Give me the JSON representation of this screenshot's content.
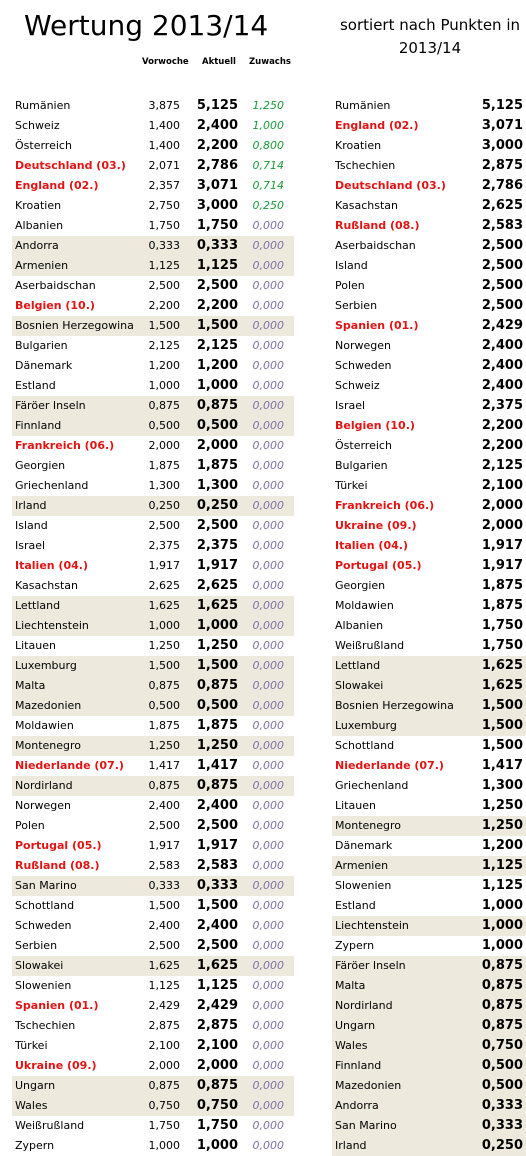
{
  "title": "Wertung 2013/14",
  "subtitle": "sortiert nach Punkten in 2013/14",
  "headers": {
    "vorwoche": "Vorwoche",
    "aktuell": "Aktuell",
    "zuwachs": "Zuwachs"
  },
  "colors": {
    "highlight_red": "#e31414",
    "gain_green": "#1a9a3a",
    "zero_purple": "#7f6fa8",
    "row_shade": "#ede9dd"
  },
  "left_rows": [
    {
      "name": "Rumänien",
      "vorwoche": "3,875",
      "aktuell": "5,125",
      "zuwachs": "1,250",
      "red": false,
      "shaded": false
    },
    {
      "name": "Schweiz",
      "vorwoche": "1,400",
      "aktuell": "2,400",
      "zuwachs": "1,000",
      "red": false,
      "shaded": false
    },
    {
      "name": "Österreich",
      "vorwoche": "1,400",
      "aktuell": "2,200",
      "zuwachs": "0,800",
      "red": false,
      "shaded": false
    },
    {
      "name": "Deutschland (03.)",
      "vorwoche": "2,071",
      "aktuell": "2,786",
      "zuwachs": "0,714",
      "red": true,
      "shaded": false
    },
    {
      "name": "England (02.)",
      "vorwoche": "2,357",
      "aktuell": "3,071",
      "zuwachs": "0,714",
      "red": true,
      "shaded": false
    },
    {
      "name": "Kroatien",
      "vorwoche": "2,750",
      "aktuell": "3,000",
      "zuwachs": "0,250",
      "red": false,
      "shaded": false
    },
    {
      "name": "Albanien",
      "vorwoche": "1,750",
      "aktuell": "1,750",
      "zuwachs": "0,000",
      "red": false,
      "shaded": false
    },
    {
      "name": "Andorra",
      "vorwoche": "0,333",
      "aktuell": "0,333",
      "zuwachs": "0,000",
      "red": false,
      "shaded": true
    },
    {
      "name": "Armenien",
      "vorwoche": "1,125",
      "aktuell": "1,125",
      "zuwachs": "0,000",
      "red": false,
      "shaded": true
    },
    {
      "name": "Aserbaidschan",
      "vorwoche": "2,500",
      "aktuell": "2,500",
      "zuwachs": "0,000",
      "red": false,
      "shaded": false
    },
    {
      "name": "Belgien (10.)",
      "vorwoche": "2,200",
      "aktuell": "2,200",
      "zuwachs": "0,000",
      "red": true,
      "shaded": false
    },
    {
      "name": "Bosnien Herzegowina",
      "vorwoche": "1,500",
      "aktuell": "1,500",
      "zuwachs": "0,000",
      "red": false,
      "shaded": true
    },
    {
      "name": "Bulgarien",
      "vorwoche": "2,125",
      "aktuell": "2,125",
      "zuwachs": "0,000",
      "red": false,
      "shaded": false
    },
    {
      "name": "Dänemark",
      "vorwoche": "1,200",
      "aktuell": "1,200",
      "zuwachs": "0,000",
      "red": false,
      "shaded": false
    },
    {
      "name": "Estland",
      "vorwoche": "1,000",
      "aktuell": "1,000",
      "zuwachs": "0,000",
      "red": false,
      "shaded": false
    },
    {
      "name": "Färöer Inseln",
      "vorwoche": "0,875",
      "aktuell": "0,875",
      "zuwachs": "0,000",
      "red": false,
      "shaded": true
    },
    {
      "name": "Finnland",
      "vorwoche": "0,500",
      "aktuell": "0,500",
      "zuwachs": "0,000",
      "red": false,
      "shaded": true
    },
    {
      "name": "Frankreich (06.)",
      "vorwoche": "2,000",
      "aktuell": "2,000",
      "zuwachs": "0,000",
      "red": true,
      "shaded": false
    },
    {
      "name": "Georgien",
      "vorwoche": "1,875",
      "aktuell": "1,875",
      "zuwachs": "0,000",
      "red": false,
      "shaded": false
    },
    {
      "name": "Griechenland",
      "vorwoche": "1,300",
      "aktuell": "1,300",
      "zuwachs": "0,000",
      "red": false,
      "shaded": false
    },
    {
      "name": "Irland",
      "vorwoche": "0,250",
      "aktuell": "0,250",
      "zuwachs": "0,000",
      "red": false,
      "shaded": true
    },
    {
      "name": "Island",
      "vorwoche": "2,500",
      "aktuell": "2,500",
      "zuwachs": "0,000",
      "red": false,
      "shaded": false
    },
    {
      "name": "Israel",
      "vorwoche": "2,375",
      "aktuell": "2,375",
      "zuwachs": "0,000",
      "red": false,
      "shaded": false
    },
    {
      "name": "Italien (04.)",
      "vorwoche": "1,917",
      "aktuell": "1,917",
      "zuwachs": "0,000",
      "red": true,
      "shaded": false
    },
    {
      "name": "Kasachstan",
      "vorwoche": "2,625",
      "aktuell": "2,625",
      "zuwachs": "0,000",
      "red": false,
      "shaded": false
    },
    {
      "name": "Lettland",
      "vorwoche": "1,625",
      "aktuell": "1,625",
      "zuwachs": "0,000",
      "red": false,
      "shaded": true
    },
    {
      "name": "Liechtenstein",
      "vorwoche": "1,000",
      "aktuell": "1,000",
      "zuwachs": "0,000",
      "red": false,
      "shaded": true
    },
    {
      "name": "Litauen",
      "vorwoche": "1,250",
      "aktuell": "1,250",
      "zuwachs": "0,000",
      "red": false,
      "shaded": false
    },
    {
      "name": "Luxemburg",
      "vorwoche": "1,500",
      "aktuell": "1,500",
      "zuwachs": "0,000",
      "red": false,
      "shaded": true
    },
    {
      "name": "Malta",
      "vorwoche": "0,875",
      "aktuell": "0,875",
      "zuwachs": "0,000",
      "red": false,
      "shaded": true
    },
    {
      "name": "Mazedonien",
      "vorwoche": "0,500",
      "aktuell": "0,500",
      "zuwachs": "0,000",
      "red": false,
      "shaded": true
    },
    {
      "name": "Moldawien",
      "vorwoche": "1,875",
      "aktuell": "1,875",
      "zuwachs": "0,000",
      "red": false,
      "shaded": false
    },
    {
      "name": "Montenegro",
      "vorwoche": "1,250",
      "aktuell": "1,250",
      "zuwachs": "0,000",
      "red": false,
      "shaded": true
    },
    {
      "name": "Niederlande (07.)",
      "vorwoche": "1,417",
      "aktuell": "1,417",
      "zuwachs": "0,000",
      "red": true,
      "shaded": false
    },
    {
      "name": "Nordirland",
      "vorwoche": "0,875",
      "aktuell": "0,875",
      "zuwachs": "0,000",
      "red": false,
      "shaded": true
    },
    {
      "name": "Norwegen",
      "vorwoche": "2,400",
      "aktuell": "2,400",
      "zuwachs": "0,000",
      "red": false,
      "shaded": false
    },
    {
      "name": "Polen",
      "vorwoche": "2,500",
      "aktuell": "2,500",
      "zuwachs": "0,000",
      "red": false,
      "shaded": false
    },
    {
      "name": "Portugal (05.)",
      "vorwoche": "1,917",
      "aktuell": "1,917",
      "zuwachs": "0,000",
      "red": true,
      "shaded": false
    },
    {
      "name": "Rußland (08.)",
      "vorwoche": "2,583",
      "aktuell": "2,583",
      "zuwachs": "0,000",
      "red": true,
      "shaded": false
    },
    {
      "name": "San Marino",
      "vorwoche": "0,333",
      "aktuell": "0,333",
      "zuwachs": "0,000",
      "red": false,
      "shaded": true
    },
    {
      "name": "Schottland",
      "vorwoche": "1,500",
      "aktuell": "1,500",
      "zuwachs": "0,000",
      "red": false,
      "shaded": false
    },
    {
      "name": "Schweden",
      "vorwoche": "2,400",
      "aktuell": "2,400",
      "zuwachs": "0,000",
      "red": false,
      "shaded": false
    },
    {
      "name": "Serbien",
      "vorwoche": "2,500",
      "aktuell": "2,500",
      "zuwachs": "0,000",
      "red": false,
      "shaded": false
    },
    {
      "name": "Slowakei",
      "vorwoche": "1,625",
      "aktuell": "1,625",
      "zuwachs": "0,000",
      "red": false,
      "shaded": true
    },
    {
      "name": "Slowenien",
      "vorwoche": "1,125",
      "aktuell": "1,125",
      "zuwachs": "0,000",
      "red": false,
      "shaded": false
    },
    {
      "name": "Spanien (01.)",
      "vorwoche": "2,429",
      "aktuell": "2,429",
      "zuwachs": "0,000",
      "red": true,
      "shaded": false
    },
    {
      "name": "Tschechien",
      "vorwoche": "2,875",
      "aktuell": "2,875",
      "zuwachs": "0,000",
      "red": false,
      "shaded": false
    },
    {
      "name": "Türkei",
      "vorwoche": "2,100",
      "aktuell": "2,100",
      "zuwachs": "0,000",
      "red": false,
      "shaded": false
    },
    {
      "name": "Ukraine (09.)",
      "vorwoche": "2,000",
      "aktuell": "2,000",
      "zuwachs": "0,000",
      "red": true,
      "shaded": false
    },
    {
      "name": "Ungarn",
      "vorwoche": "0,875",
      "aktuell": "0,875",
      "zuwachs": "0,000",
      "red": false,
      "shaded": true
    },
    {
      "name": "Wales",
      "vorwoche": "0,750",
      "aktuell": "0,750",
      "zuwachs": "0,000",
      "red": false,
      "shaded": true
    },
    {
      "name": "Weißrußland",
      "vorwoche": "1,750",
      "aktuell": "1,750",
      "zuwachs": "0,000",
      "red": false,
      "shaded": false
    },
    {
      "name": "Zypern",
      "vorwoche": "1,000",
      "aktuell": "1,000",
      "zuwachs": "0,000",
      "red": false,
      "shaded": false
    }
  ],
  "right_rows": [
    {
      "name": "Rumänien",
      "punkte": "5,125",
      "red": false,
      "shaded": false
    },
    {
      "name": "England (02.)",
      "punkte": "3,071",
      "red": true,
      "shaded": false
    },
    {
      "name": "Kroatien",
      "punkte": "3,000",
      "red": false,
      "shaded": false
    },
    {
      "name": "Tschechien",
      "punkte": "2,875",
      "red": false,
      "shaded": false
    },
    {
      "name": "Deutschland (03.)",
      "punkte": "2,786",
      "red": true,
      "shaded": false
    },
    {
      "name": "Kasachstan",
      "punkte": "2,625",
      "red": false,
      "shaded": false
    },
    {
      "name": "Rußland (08.)",
      "punkte": "2,583",
      "red": true,
      "shaded": false
    },
    {
      "name": "Aserbaidschan",
      "punkte": "2,500",
      "red": false,
      "shaded": false
    },
    {
      "name": "Island",
      "punkte": "2,500",
      "red": false,
      "shaded": false
    },
    {
      "name": "Polen",
      "punkte": "2,500",
      "red": false,
      "shaded": false
    },
    {
      "name": "Serbien",
      "punkte": "2,500",
      "red": false,
      "shaded": false
    },
    {
      "name": "Spanien (01.)",
      "punkte": "2,429",
      "red": true,
      "shaded": false
    },
    {
      "name": "Norwegen",
      "punkte": "2,400",
      "red": false,
      "shaded": false
    },
    {
      "name": "Schweden",
      "punkte": "2,400",
      "red": false,
      "shaded": false
    },
    {
      "name": "Schweiz",
      "punkte": "2,400",
      "red": false,
      "shaded": false
    },
    {
      "name": "Israel",
      "punkte": "2,375",
      "red": false,
      "shaded": false
    },
    {
      "name": "Belgien (10.)",
      "punkte": "2,200",
      "red": true,
      "shaded": false
    },
    {
      "name": "Österreich",
      "punkte": "2,200",
      "red": false,
      "shaded": false
    },
    {
      "name": "Bulgarien",
      "punkte": "2,125",
      "red": false,
      "shaded": false
    },
    {
      "name": "Türkei",
      "punkte": "2,100",
      "red": false,
      "shaded": false
    },
    {
      "name": "Frankreich (06.)",
      "punkte": "2,000",
      "red": true,
      "shaded": false
    },
    {
      "name": "Ukraine (09.)",
      "punkte": "2,000",
      "red": true,
      "shaded": false
    },
    {
      "name": "Italien (04.)",
      "punkte": "1,917",
      "red": true,
      "shaded": false
    },
    {
      "name": "Portugal (05.)",
      "punkte": "1,917",
      "red": true,
      "shaded": false
    },
    {
      "name": "Georgien",
      "punkte": "1,875",
      "red": false,
      "shaded": false
    },
    {
      "name": "Moldawien",
      "punkte": "1,875",
      "red": false,
      "shaded": false
    },
    {
      "name": "Albanien",
      "punkte": "1,750",
      "red": false,
      "shaded": false
    },
    {
      "name": "Weißrußland",
      "punkte": "1,750",
      "red": false,
      "shaded": false
    },
    {
      "name": "Lettland",
      "punkte": "1,625",
      "red": false,
      "shaded": true
    },
    {
      "name": "Slowakei",
      "punkte": "1,625",
      "red": false,
      "shaded": true
    },
    {
      "name": "Bosnien Herzegowina",
      "punkte": "1,500",
      "red": false,
      "shaded": true
    },
    {
      "name": "Luxemburg",
      "punkte": "1,500",
      "red": false,
      "shaded": true
    },
    {
      "name": "Schottland",
      "punkte": "1,500",
      "red": false,
      "shaded": false
    },
    {
      "name": "Niederlande (07.)",
      "punkte": "1,417",
      "red": true,
      "shaded": false
    },
    {
      "name": "Griechenland",
      "punkte": "1,300",
      "red": false,
      "shaded": false
    },
    {
      "name": "Litauen",
      "punkte": "1,250",
      "red": false,
      "shaded": false
    },
    {
      "name": "Montenegro",
      "punkte": "1,250",
      "red": false,
      "shaded": true
    },
    {
      "name": "Dänemark",
      "punkte": "1,200",
      "red": false,
      "shaded": false
    },
    {
      "name": "Armenien",
      "punkte": "1,125",
      "red": false,
      "shaded": true
    },
    {
      "name": "Slowenien",
      "punkte": "1,125",
      "red": false,
      "shaded": false
    },
    {
      "name": "Estland",
      "punkte": "1,000",
      "red": false,
      "shaded": false
    },
    {
      "name": "Liechtenstein",
      "punkte": "1,000",
      "red": false,
      "shaded": true
    },
    {
      "name": "Zypern",
      "punkte": "1,000",
      "red": false,
      "shaded": false
    },
    {
      "name": "Färöer Inseln",
      "punkte": "0,875",
      "red": false,
      "shaded": true
    },
    {
      "name": "Malta",
      "punkte": "0,875",
      "red": false,
      "shaded": true
    },
    {
      "name": "Nordirland",
      "punkte": "0,875",
      "red": false,
      "shaded": true
    },
    {
      "name": "Ungarn",
      "punkte": "0,875",
      "red": false,
      "shaded": true
    },
    {
      "name": "Wales",
      "punkte": "0,750",
      "red": false,
      "shaded": true
    },
    {
      "name": "Finnland",
      "punkte": "0,500",
      "red": false,
      "shaded": true
    },
    {
      "name": "Mazedonien",
      "punkte": "0,500",
      "red": false,
      "shaded": true
    },
    {
      "name": "Andorra",
      "punkte": "0,333",
      "red": false,
      "shaded": true
    },
    {
      "name": "San Marino",
      "punkte": "0,333",
      "red": false,
      "shaded": true
    },
    {
      "name": "Irland",
      "punkte": "0,250",
      "red": false,
      "shaded": true
    }
  ]
}
